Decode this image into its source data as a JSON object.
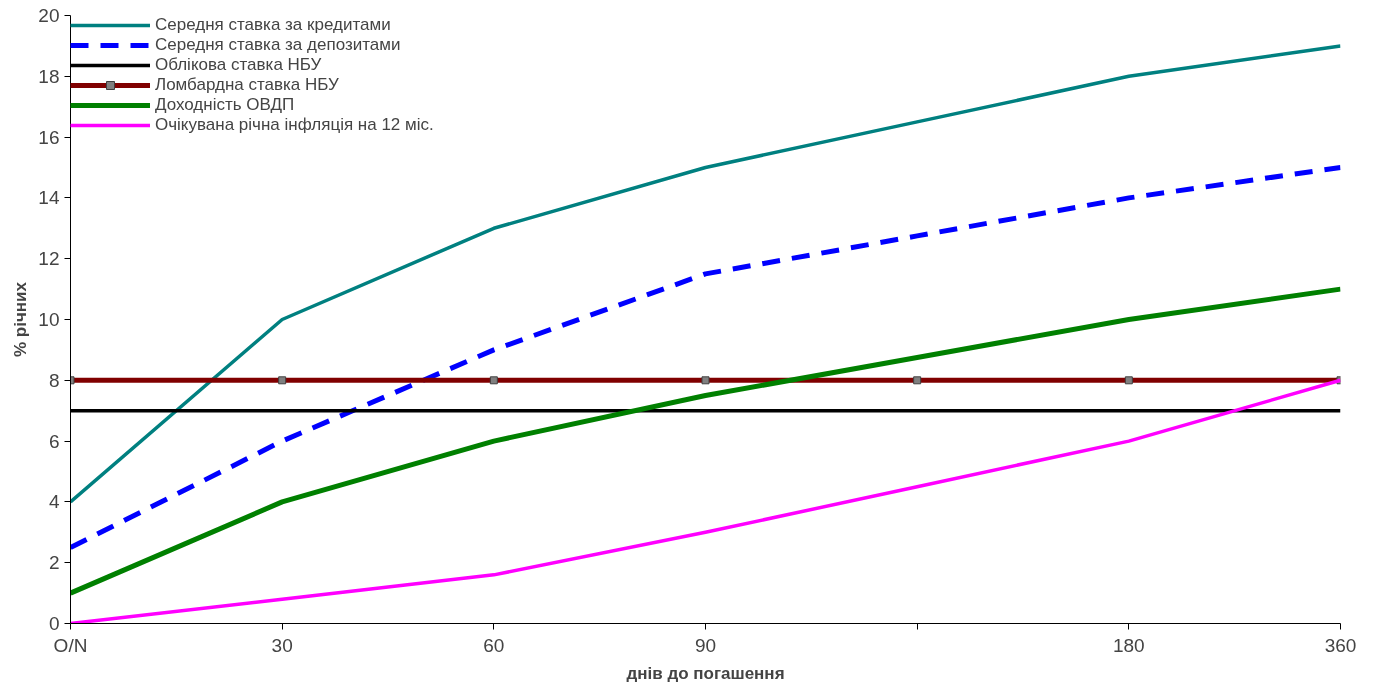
{
  "chart_data": {
    "type": "line",
    "xlabel": "днів до погашення",
    "ylabel": "% річних",
    "categories": [
      "O/N",
      "30",
      "60",
      "90",
      null,
      "180",
      "360"
    ],
    "ylim": [
      0,
      20
    ],
    "yticks": [
      0,
      2,
      4,
      6,
      8,
      10,
      12,
      14,
      16,
      18,
      20
    ],
    "grid": false,
    "legend": "top left",
    "series": [
      {
        "name": "Середня ставка за кредитами",
        "color": "#008080",
        "values": [
          4,
          10,
          13,
          15,
          16.5,
          18,
          19
        ],
        "line_style": "solid",
        "marker": "none"
      },
      {
        "name": "Середня ставка за депозитами",
        "color": "#0000ff",
        "values": [
          2.5,
          6,
          9,
          11.5,
          12.75,
          14,
          15
        ],
        "line_style": "dashed",
        "marker": "none"
      },
      {
        "name": "Облікова ставка НБУ",
        "color": "#000000",
        "values": [
          7,
          7,
          7,
          7,
          7,
          7,
          7
        ],
        "line_style": "solid",
        "marker": "none"
      },
      {
        "name": "Ломбардна ставка НБУ",
        "color": "#800000",
        "values": [
          8,
          8,
          8,
          8,
          8,
          8,
          8
        ],
        "line_style": "solid",
        "marker": "square"
      },
      {
        "name": "Доходність ОВДП",
        "color": "#008000",
        "values": [
          1,
          4,
          6,
          7.5,
          8.75,
          10,
          11
        ],
        "line_style": "solid",
        "marker": "none"
      },
      {
        "name": "Очікувана річна інфляція на 12 міс.",
        "color": "#ff00ff",
        "values": [
          0,
          0.8,
          1.6,
          3,
          4.5,
          6,
          8
        ],
        "line_style": "solid",
        "marker": "none"
      }
    ]
  }
}
